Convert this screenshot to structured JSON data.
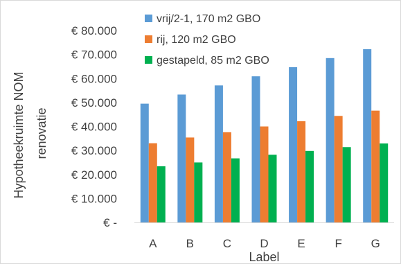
{
  "chart_data": {
    "type": "bar",
    "title": "",
    "xlabel": "Label",
    "ylabel": "Hypotheekruimte NOM renovatie",
    "ylabel_lines": [
      "Hypotheekruimte NOM",
      "renovatie"
    ],
    "ylim": [
      0,
      80000
    ],
    "yticks": [
      0,
      10000,
      20000,
      30000,
      40000,
      50000,
      60000,
      70000,
      80000
    ],
    "ytick_labels": [
      "€ -",
      "€ 10.000",
      "€ 20.000",
      "€ 30.000",
      "€ 40.000",
      "€ 50.000",
      "€ 60.000",
      "€ 70.000",
      "€ 80.000"
    ],
    "categories": [
      "A",
      "B",
      "C",
      "D",
      "E",
      "F",
      "G"
    ],
    "grid": false,
    "legend_position": "top-right",
    "series": [
      {
        "name": "vrij/2-1, 170 m2 GBO",
        "color": "#5b9bd5",
        "values": [
          49500,
          53300,
          57100,
          60900,
          64700,
          68500,
          72200
        ]
      },
      {
        "name": "rij, 120 m2 GBO",
        "color": "#ed7d31",
        "values": [
          33000,
          35400,
          37600,
          40000,
          42200,
          44400,
          46600
        ]
      },
      {
        "name": "gestapeld, 85 m2 GBO",
        "color": "#00b050",
        "values": [
          23400,
          25000,
          26700,
          28200,
          29800,
          31400,
          32900
        ]
      }
    ]
  }
}
